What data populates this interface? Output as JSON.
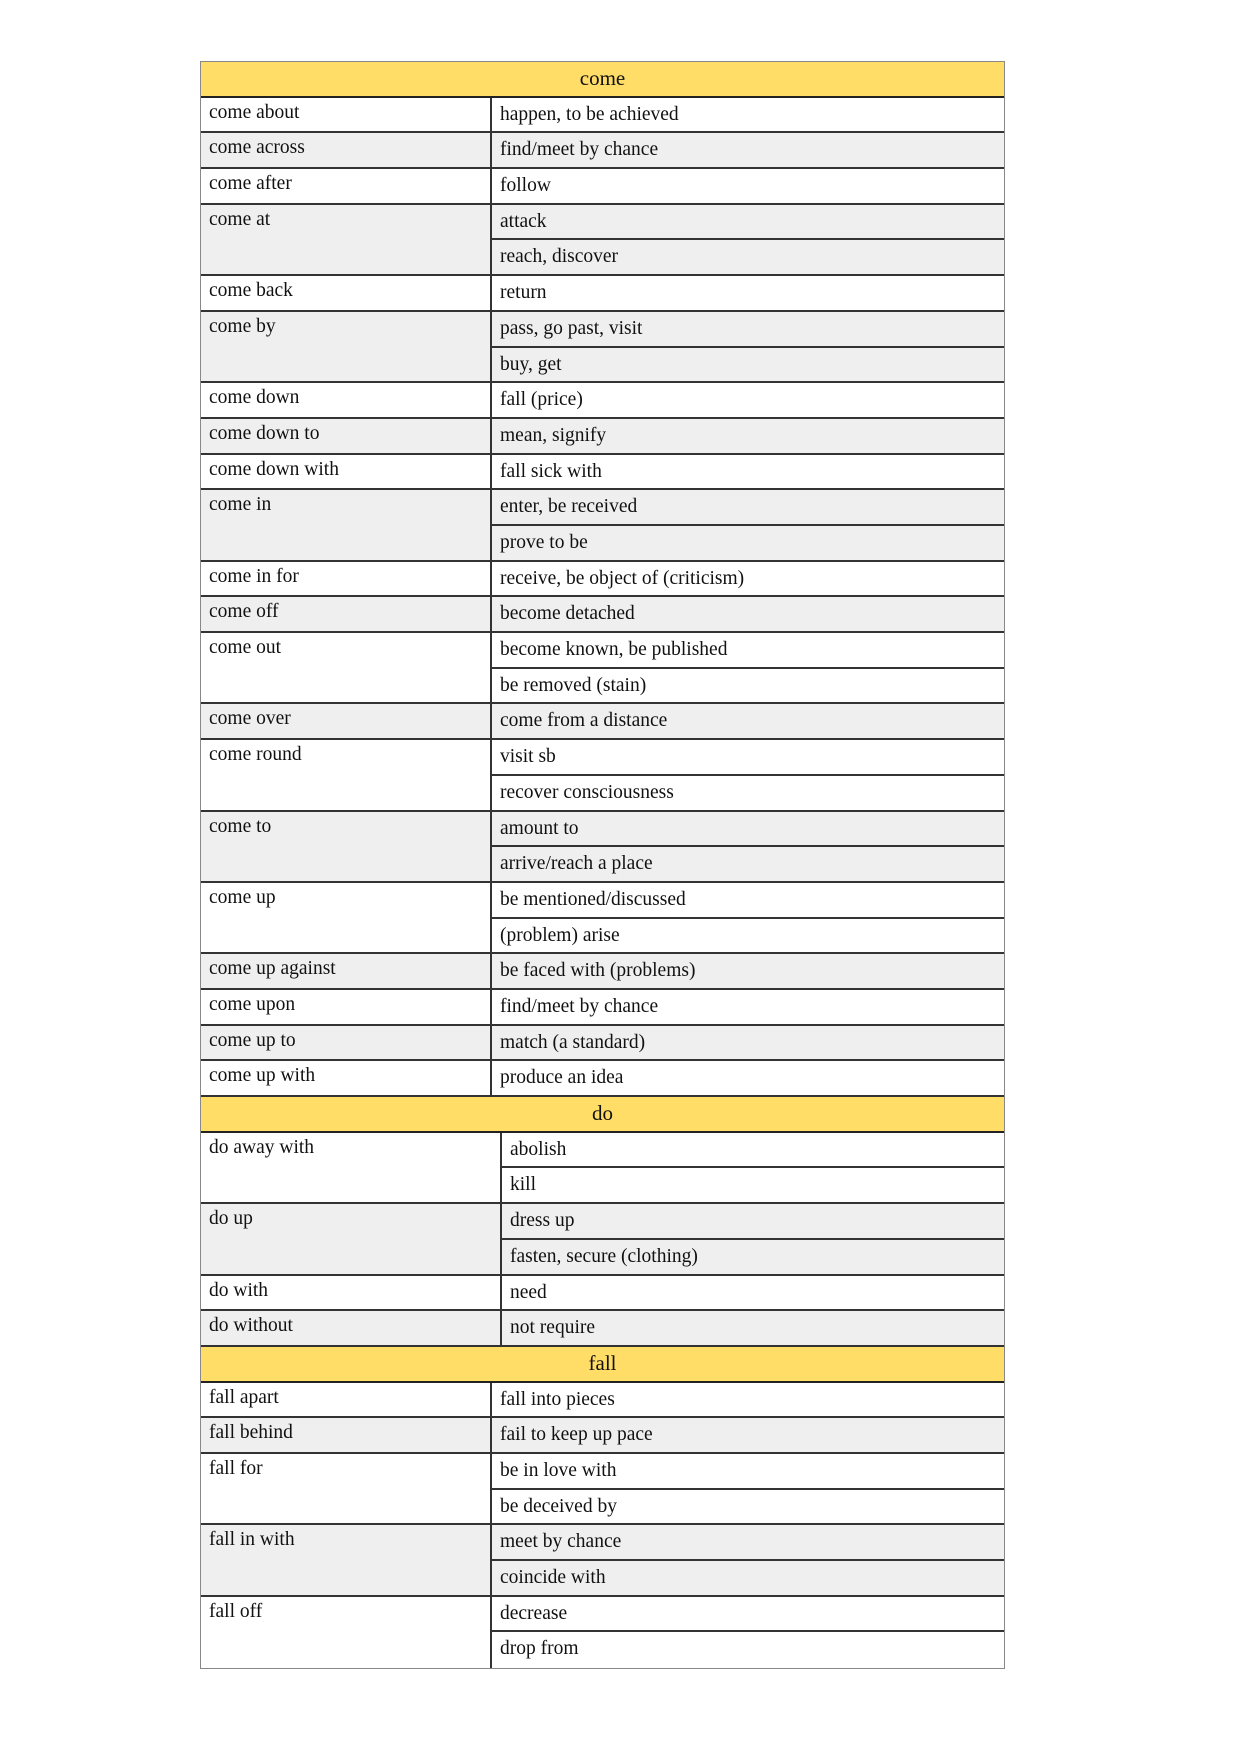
{
  "sections": [
    {
      "title": "come",
      "term_width": 291,
      "entries": [
        {
          "term": "come about",
          "defs": [
            "happen, to be achieved"
          ]
        },
        {
          "term": "come across",
          "defs": [
            "find/meet by chance"
          ]
        },
        {
          "term": "come after",
          "defs": [
            "follow"
          ]
        },
        {
          "term": "come at",
          "defs": [
            "attack",
            "reach, discover"
          ]
        },
        {
          "term": "come back",
          "defs": [
            "return"
          ]
        },
        {
          "term": "come by",
          "defs": [
            "pass, go past, visit",
            "buy, get"
          ]
        },
        {
          "term": "come down",
          "defs": [
            "fall (price)"
          ]
        },
        {
          "term": "come down to",
          "defs": [
            "mean, signify"
          ]
        },
        {
          "term": "come down with",
          "defs": [
            "fall sick with"
          ]
        },
        {
          "term": "come in",
          "defs": [
            "enter, be received",
            "prove to be"
          ]
        },
        {
          "term": "come in for",
          "defs": [
            "receive, be object of (criticism)"
          ]
        },
        {
          "term": "come off",
          "defs": [
            "become detached"
          ]
        },
        {
          "term": "come out",
          "defs": [
            "become known, be published",
            "be removed (stain)"
          ]
        },
        {
          "term": "come over",
          "defs": [
            "come from a distance"
          ]
        },
        {
          "term": "come round",
          "defs": [
            "visit sb",
            "recover consciousness"
          ]
        },
        {
          "term": "come to",
          "defs": [
            "amount to",
            "arrive/reach a place"
          ]
        },
        {
          "term": "come up",
          "defs": [
            "be mentioned/discussed",
            "(problem) arise"
          ]
        },
        {
          "term": "come up against",
          "defs": [
            "be faced with (problems)"
          ]
        },
        {
          "term": "come upon",
          "defs": [
            "find/meet by chance"
          ]
        },
        {
          "term": "come up to",
          "defs": [
            "match (a standard)"
          ]
        },
        {
          "term": "come up with",
          "defs": [
            "produce an idea"
          ]
        }
      ]
    },
    {
      "title": "do",
      "term_width": 301,
      "entries": [
        {
          "term": "do away with",
          "defs": [
            "abolish",
            "kill"
          ]
        },
        {
          "term": "do up",
          "defs": [
            "dress up",
            "fasten, secure (clothing)"
          ]
        },
        {
          "term": "do with",
          "defs": [
            "need"
          ]
        },
        {
          "term": "do without",
          "defs": [
            "not require"
          ]
        }
      ]
    },
    {
      "title": "fall",
      "term_width": 291,
      "entries": [
        {
          "term": "fall apart",
          "defs": [
            "fall into pieces"
          ]
        },
        {
          "term": "fall behind",
          "defs": [
            "fail to keep up pace"
          ]
        },
        {
          "term": "fall for",
          "defs": [
            "be in love with",
            "be deceived by"
          ]
        },
        {
          "term": "fall in with",
          "defs": [
            "meet by chance",
            "coincide with"
          ]
        },
        {
          "term": "fall off",
          "defs": [
            "decrease",
            "drop from"
          ]
        }
      ]
    }
  ],
  "colors": {
    "header": "#ffdd66",
    "shade": "#efefef"
  }
}
